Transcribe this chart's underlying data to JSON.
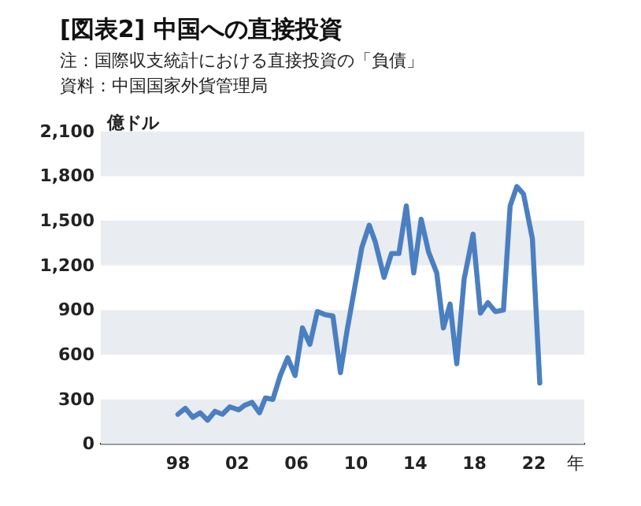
{
  "chart_data": {
    "type": "line",
    "title": "[図表2] 中国への直接投資",
    "subtitle": "注：国際収支統計における直接投資の「負債」",
    "annotations": [
      "資料：中国国家外貨管理局"
    ],
    "xlabel": "年",
    "ylabel": "億ドル",
    "x": [
      1998.0,
      1998.5,
      1999.0,
      1999.5,
      2000.0,
      2000.5,
      2001.0,
      2001.5,
      2002.1,
      2002.5,
      2003.0,
      2003.5,
      2003.9,
      2004.4,
      2004.9,
      2005.4,
      2005.9,
      2006.4,
      2006.9,
      2007.4,
      2007.9,
      2008.45,
      2008.96,
      2009.4,
      2009.9,
      2010.4,
      2010.9,
      2011.3,
      2011.9,
      2012.4,
      2012.9,
      2013.4,
      2013.9,
      2014.4,
      2014.9,
      2015.45,
      2015.9,
      2016.35,
      2016.8,
      2017.3,
      2017.9,
      2018.4,
      2018.9,
      2019.4,
      2019.95,
      2020.4,
      2020.85,
      2021.3,
      2021.9,
      2022.4
    ],
    "series": [
      {
        "color": "#4a7fc1",
        "values": [
          200,
          240,
          180,
          210,
          160,
          220,
          200,
          250,
          230,
          260,
          280,
          210,
          310,
          300,
          460,
          580,
          460,
          780,
          670,
          890,
          870,
          860,
          480,
          760,
          1040,
          1320,
          1470,
          1360,
          1120,
          1280,
          1280,
          1600,
          1150,
          1510,
          1290,
          1150,
          780,
          940,
          540,
          1110,
          1410,
          880,
          950,
          890,
          900,
          1600,
          1730,
          1680,
          1380,
          410
        ]
      }
    ],
    "xlim": [
      1992.8,
      2025.4
    ],
    "xticks": [
      {
        "value": 1998,
        "label": "98"
      },
      {
        "value": 2002,
        "label": "02"
      },
      {
        "value": 2006,
        "label": "06"
      },
      {
        "value": 2010,
        "label": "10"
      },
      {
        "value": 2014,
        "label": "14"
      },
      {
        "value": 2018,
        "label": "18"
      },
      {
        "value": 2022,
        "label": "22"
      }
    ],
    "ylim": [
      0,
      2100
    ],
    "yticks": [
      0,
      300,
      600,
      900,
      {
        "value": 1200,
        "label": "1,200"
      },
      {
        "value": 1500,
        "label": "1,500"
      },
      {
        "value": 1800,
        "label": "1,800"
      },
      {
        "value": 2100,
        "label": "2,100"
      }
    ],
    "bands": [
      {
        "axis": "y",
        "from": 0,
        "to": 300,
        "color": "#e9ecf0"
      },
      {
        "axis": "y",
        "from": 600,
        "to": 900,
        "color": "#e9ecf0"
      },
      {
        "axis": "y",
        "from": 1200,
        "to": 1500,
        "color": "#e9ecf0"
      },
      {
        "axis": "y",
        "from": 1800,
        "to": 2100,
        "color": "#e9ecf0"
      }
    ],
    "marker": "none",
    "line_style": "solid"
  }
}
